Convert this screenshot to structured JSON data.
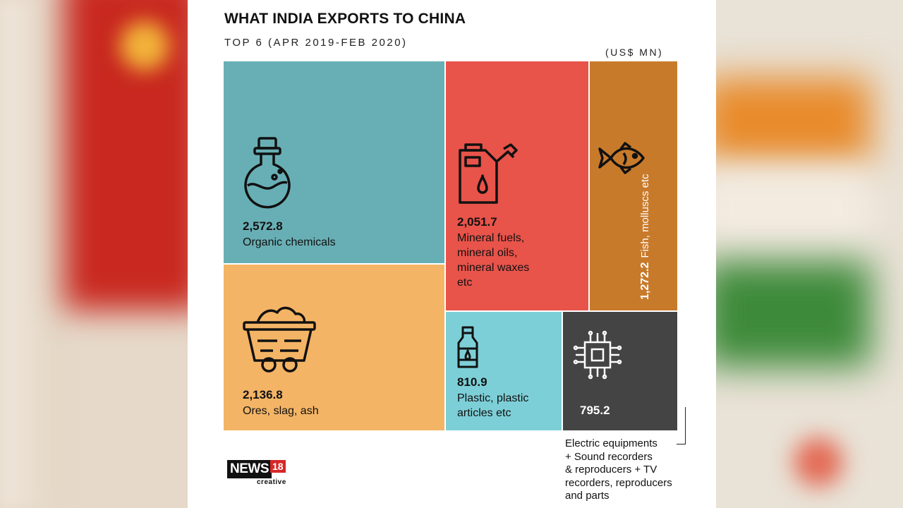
{
  "chart_data": {
    "type": "treemap",
    "title": "WHAT INDIA EXPORTS TO CHINA",
    "subtitle": "TOP 6 (APR 2019-FEB 2020)",
    "unit": "(US$ MN)",
    "items": [
      {
        "value": 2572.8,
        "value_label": "2,572.8",
        "label": "Organic chemicals",
        "color": "#68afb5",
        "icon": "flask-icon"
      },
      {
        "value": 2136.8,
        "value_label": "2,136.8",
        "label": "Ores, slag, ash",
        "color": "#f4b465",
        "icon": "mine-cart-icon"
      },
      {
        "value": 2051.7,
        "value_label": "2,051.7",
        "label_lines": [
          "Mineral fuels,",
          "mineral oils,",
          "mineral waxes",
          "etc"
        ],
        "color": "#e8534a",
        "icon": "fuel-canister-icon"
      },
      {
        "value": 1272.2,
        "value_label": "1,272.2",
        "label": "Fish, molluscs etc",
        "color": "#c87a2b",
        "icon": "fish-icon"
      },
      {
        "value": 810.9,
        "value_label": "810.9",
        "label_lines": [
          "Plastic, plastic",
          "articles etc"
        ],
        "color": "#7dcfd7",
        "icon": "bottle-icon"
      },
      {
        "value": 795.2,
        "value_label": "795.2",
        "label_lines": [
          "Electric equipments",
          "+ Sound recorders",
          "& reproducers + TV",
          "recorders, reproducers",
          "and parts"
        ],
        "color": "#444444",
        "icon": "microchip-icon"
      }
    ]
  },
  "logo": {
    "main": "NEWS",
    "number": "18",
    "sub": "creative"
  }
}
